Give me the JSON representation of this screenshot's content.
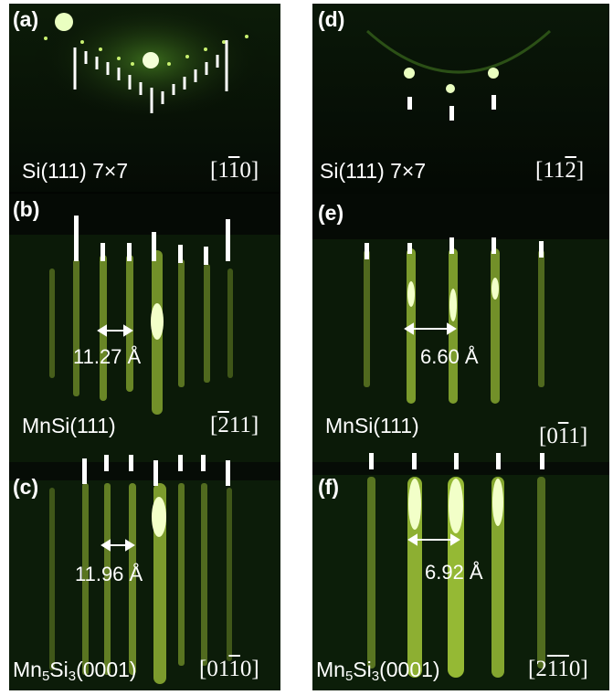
{
  "panels": [
    {
      "id": "a",
      "letter": "(a)",
      "surface": "Si(111) 7×7",
      "dir": {
        "pre": "[1",
        "bar": "1",
        "post": "0]"
      }
    },
    {
      "id": "b",
      "letter": "(b)",
      "surface": "MnSi(111)",
      "dir": {
        "pre": "[",
        "bar": "2",
        "post": "11]"
      },
      "spacing": "11.27 Å"
    },
    {
      "id": "c",
      "letter": "(c)",
      "surface": {
        "pre": "Mn",
        "sub1": "5",
        "mid": "Si",
        "sub2": "3",
        "post": "(0001)"
      },
      "dir": {
        "pre": "[01",
        "bar": "1",
        "post": "0]"
      },
      "spacing": "11.96 Å"
    },
    {
      "id": "d",
      "letter": "(d)",
      "surface": "Si(111) 7×7",
      "dir": {
        "pre": "[11",
        "bar": "2",
        "post": "]"
      }
    },
    {
      "id": "e",
      "letter": "(e)",
      "surface": "MnSi(111)",
      "dir": {
        "pre": "[0",
        "bar": "1",
        "post": "1]"
      },
      "spacing": "6.60 Å"
    },
    {
      "id": "f",
      "letter": "(f)",
      "surface": {
        "pre": "Mn",
        "sub1": "5",
        "mid": "Si",
        "sub2": "3",
        "post": "(0001)"
      },
      "dir": {
        "pre": "[2",
        "bar1": "1",
        "bar2": "1",
        "post": "0]"
      },
      "spacing": "6.92 Å"
    }
  ],
  "colors": {
    "background": "#040904",
    "streak": "#b8e040",
    "spot": "#f2ffc8",
    "marker": "#ffffff"
  }
}
